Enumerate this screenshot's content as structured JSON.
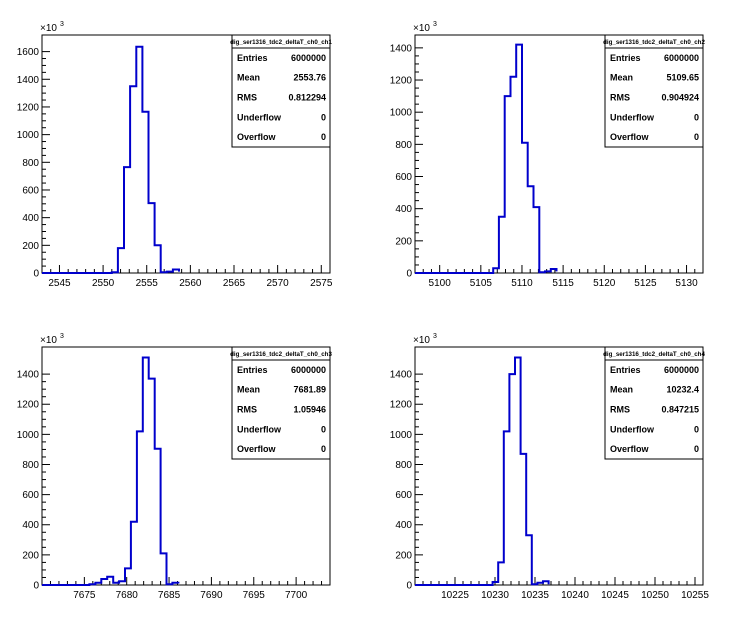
{
  "chart_data": [
    {
      "type": "histogram",
      "name": "dig_ser1316_tdc2_deltaT_ch0_ch1",
      "xlim": [
        2543,
        2576
      ],
      "ylim": [
        0,
        1720
      ],
      "y_exponent_label": "×10",
      "y_exponent": "3",
      "xticks": [
        2545,
        2550,
        2555,
        2560,
        2565,
        2570,
        2575
      ],
      "yticks": [
        0,
        200,
        400,
        600,
        800,
        1000,
        1200,
        1400,
        1600
      ],
      "bin_edges": [
        2551,
        2551.7,
        2552.4,
        2553.1,
        2553.8,
        2554.5,
        2555.2,
        2555.9,
        2556.6,
        2557.3,
        2558,
        2558.7
      ],
      "bin_values": [
        5,
        180,
        765,
        1350,
        1635,
        1165,
        505,
        200,
        5,
        10,
        25,
        10
      ],
      "stats": [
        {
          "label": "Entries",
          "value": "6000000"
        },
        {
          "label": "Mean",
          "value": "2553.76"
        },
        {
          "label": "RMS",
          "value": "0.812294"
        },
        {
          "label": "Underflow",
          "value": "0"
        },
        {
          "label": "Overflow",
          "value": "0"
        }
      ]
    },
    {
      "type": "histogram",
      "name": "dig_ser1316_tdc2_deltaT_ch0_ch2",
      "xlim": [
        5097,
        5132
      ],
      "ylim": [
        0,
        1480
      ],
      "y_exponent_label": "×10",
      "y_exponent": "3",
      "xticks": [
        5100,
        5105,
        5110,
        5115,
        5120,
        5125,
        5130
      ],
      "yticks": [
        0,
        200,
        400,
        600,
        800,
        1000,
        1200,
        1400
      ],
      "bin_edges": [
        5106.5,
        5107.2,
        5107.9,
        5108.6,
        5109.3,
        5110,
        5110.7,
        5111.4,
        5112.1,
        5112.8,
        5113.5,
        5114.2
      ],
      "bin_values": [
        30,
        350,
        1100,
        1220,
        1420,
        810,
        540,
        410,
        5,
        10,
        25,
        10
      ],
      "stats": [
        {
          "label": "Entries",
          "value": "6000000"
        },
        {
          "label": "Mean",
          "value": "5109.65"
        },
        {
          "label": "RMS",
          "value": "0.904924"
        },
        {
          "label": "Underflow",
          "value": "0"
        },
        {
          "label": "Overflow",
          "value": "0"
        }
      ]
    },
    {
      "type": "histogram",
      "name": "dig_ser1316_tdc2_deltaT_ch0_ch3",
      "xlim": [
        7670,
        7704
      ],
      "ylim": [
        0,
        1580
      ],
      "y_exponent_label": "×10",
      "y_exponent": "3",
      "xticks": [
        7675,
        7680,
        7685,
        7690,
        7695,
        7700
      ],
      "yticks": [
        0,
        200,
        400,
        600,
        800,
        1000,
        1200,
        1400
      ],
      "bin_edges": [
        7675.6,
        7676.3,
        7677,
        7677.7,
        7678.4,
        7679.1,
        7679.8,
        7680.5,
        7681.2,
        7681.9,
        7682.6,
        7683.3,
        7684,
        7684.7,
        7685.4,
        7686.1
      ],
      "bin_values": [
        5,
        15,
        40,
        55,
        15,
        25,
        110,
        420,
        1020,
        1510,
        1370,
        905,
        210,
        5,
        15,
        10
      ],
      "stats": [
        {
          "label": "Entries",
          "value": "6000000"
        },
        {
          "label": "Mean",
          "value": "7681.89"
        },
        {
          "label": "RMS",
          "value": "1.05946"
        },
        {
          "label": "Underflow",
          "value": "0"
        },
        {
          "label": "Overflow",
          "value": "0"
        }
      ]
    },
    {
      "type": "histogram",
      "name": "dig_ser1316_tdc2_deltaT_ch0_ch4",
      "xlim": [
        10220,
        10256
      ],
      "ylim": [
        0,
        1580
      ],
      "y_exponent_label": "×10",
      "y_exponent": "3",
      "xticks": [
        10225,
        10230,
        10235,
        10240,
        10245,
        10250,
        10255
      ],
      "yticks": [
        0,
        200,
        400,
        600,
        800,
        1000,
        1200,
        1400
      ],
      "bin_edges": [
        10229.7,
        10230.4,
        10231.1,
        10231.8,
        10232.5,
        10233.2,
        10233.9,
        10234.6,
        10235.3,
        10236,
        10236.7
      ],
      "bin_values": [
        20,
        150,
        1020,
        1400,
        1510,
        870,
        330,
        5,
        15,
        25,
        5
      ],
      "stats": [
        {
          "label": "Entries",
          "value": "6000000"
        },
        {
          "label": "Mean",
          "value": "10232.4"
        },
        {
          "label": "RMS",
          "value": "0.847215"
        },
        {
          "label": "Underflow",
          "value": "0"
        },
        {
          "label": "Overflow",
          "value": "0"
        }
      ]
    }
  ],
  "colors": {
    "histogram_line": "#0000cc",
    "frame": "#000000",
    "background": "#ffffff"
  }
}
